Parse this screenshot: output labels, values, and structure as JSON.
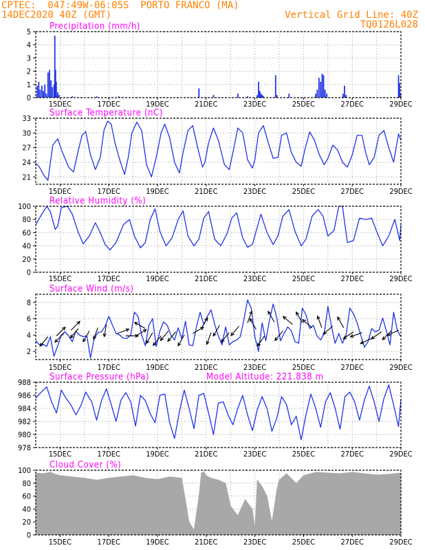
{
  "header": {
    "line1": "CPTEC:  047:49W-06:05S  PORTO FRANCO (MA)",
    "line2_left": "14DEC2020 40Z (GMT)",
    "line2_right": "Vertical Grid Line: 40Z",
    "line3_right": "TQ0126L028",
    "color": "#ff8000"
  },
  "colors": {
    "title": "#ff00ff",
    "line": "#1e32e6",
    "bar": "#1e32e6",
    "cloud": "#a8a8a8",
    "grid": "#9a9a9a",
    "axis": "#000000"
  },
  "x_axis_labels": [
    "15DEC",
    "17DEC",
    "19DEC",
    "21DEC",
    "23DEC",
    "25DEC",
    "27DEC",
    "29DEC"
  ],
  "chart_data": [
    {
      "type": "bar",
      "title": "Precipitation (mm/h)",
      "ylim": [
        0,
        5
      ],
      "yticks": [
        "0",
        "1",
        "2",
        "3",
        "4",
        "5"
      ],
      "x_range_days": [
        14.0,
        29.0
      ],
      "x": [
        14.06,
        14.12,
        14.18,
        14.25,
        14.31,
        14.37,
        14.43,
        14.5,
        14.56,
        14.62,
        14.68,
        14.75,
        14.78,
        14.81,
        14.84,
        14.9,
        14.95,
        15.5,
        16.5,
        17.4,
        20.7,
        21.3,
        22.3,
        22.7,
        23.1,
        23.15,
        23.2,
        23.25,
        23.3,
        23.35,
        23.85,
        23.9,
        24.4,
        25.5,
        25.56,
        25.63,
        25.7,
        25.76,
        25.82,
        25.88,
        25.95,
        26.62,
        26.68,
        26.74,
        28.9,
        28.94,
        28.98
      ],
      "values": [
        0.9,
        1.2,
        0.6,
        0.9,
        0.5,
        1.0,
        0.3,
        1.9,
        2.1,
        1.3,
        0.8,
        1.0,
        4.7,
        2.1,
        1.2,
        0.4,
        0.2,
        0.1,
        0.1,
        0.1,
        0.7,
        0.2,
        0.3,
        0.1,
        0.2,
        1.2,
        0.5,
        0.3,
        0.2,
        0.1,
        1.7,
        0.2,
        0.3,
        0.3,
        0.6,
        1.5,
        1.2,
        1.8,
        1.7,
        0.6,
        0.3,
        0.3,
        0.9,
        0.2,
        1.7,
        1.1,
        0.3
      ]
    },
    {
      "type": "line",
      "title": "Surface Temperature (nC)",
      "ylim": [
        19.5,
        33
      ],
      "yticks": [
        "21",
        "24",
        "27",
        "30",
        "33"
      ],
      "x_range_days": [
        14.0,
        29.0
      ],
      "x": [
        14.0,
        14.15,
        14.35,
        14.5,
        14.7,
        14.9,
        15.1,
        15.35,
        15.55,
        15.75,
        15.9,
        16.05,
        16.25,
        16.45,
        16.65,
        16.8,
        16.95,
        17.1,
        17.25,
        17.45,
        17.65,
        17.8,
        17.95,
        18.15,
        18.35,
        18.55,
        18.75,
        18.95,
        19.15,
        19.3,
        19.5,
        19.7,
        19.9,
        20.05,
        20.25,
        20.45,
        20.65,
        20.85,
        20.95,
        21.1,
        21.3,
        21.5,
        21.75,
        21.95,
        22.1,
        22.3,
        22.5,
        22.7,
        22.9,
        23.0,
        23.15,
        23.35,
        23.55,
        23.75,
        23.95,
        24.1,
        24.3,
        24.5,
        24.7,
        24.9,
        25.05,
        25.25,
        25.45,
        25.65,
        25.85,
        26.0,
        26.2,
        26.4,
        26.6,
        26.8,
        27.0,
        27.2,
        27.4,
        27.55,
        27.7,
        27.9,
        28.1,
        28.3,
        28.5,
        28.7,
        28.9,
        29.0
      ],
      "values": [
        23.8,
        23.0,
        21.2,
        20.3,
        27.5,
        28.8,
        26.0,
        23.0,
        22.0,
        26.5,
        29.5,
        30.3,
        25.5,
        22.5,
        25.0,
        30.5,
        32.4,
        31.8,
        28.0,
        24.5,
        21.5,
        25.0,
        30.0,
        32.2,
        30.5,
        23.5,
        21.0,
        25.0,
        30.0,
        31.8,
        29.0,
        24.0,
        21.8,
        26.0,
        30.5,
        31.5,
        27.0,
        23.0,
        24.0,
        28.0,
        31.0,
        28.5,
        23.5,
        22.5,
        26.0,
        31.0,
        30.0,
        24.5,
        22.8,
        24.5,
        30.0,
        31.5,
        28.0,
        24.8,
        25.0,
        29.5,
        30.0,
        26.0,
        24.0,
        23.2,
        26.5,
        30.2,
        28.5,
        25.5,
        23.5,
        24.8,
        27.5,
        26.5,
        24.0,
        23.0,
        25.5,
        29.5,
        29.5,
        26.0,
        23.5,
        25.0,
        29.5,
        30.5,
        27.0,
        24.0,
        29.8,
        28.5
      ]
    },
    {
      "type": "line",
      "title": "Relative Humidity (%)",
      "ylim": [
        0,
        100
      ],
      "yticks": [
        "0",
        "20",
        "40",
        "60",
        "80",
        "100"
      ],
      "x_range_days": [
        14.0,
        29.0
      ],
      "x": [
        14.0,
        14.2,
        14.45,
        14.6,
        14.8,
        14.9,
        15.05,
        15.3,
        15.5,
        15.75,
        15.95,
        16.2,
        16.45,
        16.65,
        16.85,
        17.05,
        17.3,
        17.6,
        17.85,
        18.05,
        18.3,
        18.5,
        18.7,
        18.9,
        19.1,
        19.35,
        19.6,
        19.85,
        20.05,
        20.25,
        20.5,
        20.7,
        20.9,
        21.1,
        21.35,
        21.6,
        21.85,
        22.05,
        22.25,
        22.5,
        22.7,
        22.9,
        23.05,
        23.25,
        23.5,
        23.75,
        23.95,
        24.15,
        24.4,
        24.65,
        24.9,
        25.1,
        25.35,
        25.6,
        25.8,
        26.0,
        26.25,
        26.45,
        26.6,
        26.8,
        27.05,
        27.3,
        27.55,
        27.8,
        28.0,
        28.25,
        28.5,
        28.75,
        28.95,
        29.0
      ],
      "values": [
        72.0,
        85.0,
        100.0,
        92.0,
        65.0,
        70.0,
        98.0,
        100.0,
        88.0,
        60.0,
        43.0,
        55.0,
        75.0,
        60.0,
        42.0,
        34.0,
        45.0,
        72.0,
        80.0,
        55.0,
        37.0,
        45.0,
        80.0,
        96.0,
        62.0,
        40.0,
        52.0,
        80.0,
        93.0,
        55.0,
        40.0,
        50.0,
        82.0,
        92.0,
        50.0,
        40.0,
        58.0,
        82.0,
        90.0,
        52.0,
        38.0,
        42.0,
        62.0,
        88.0,
        60.0,
        42.0,
        55.0,
        85.0,
        95.0,
        62.0,
        40.0,
        50.0,
        85.0,
        95.0,
        85.0,
        55.0,
        63.0,
        100.0,
        100.0,
        45.0,
        48.0,
        82.0,
        80.0,
        82.0,
        62.0,
        40.0,
        55.0,
        80.0,
        48.0,
        72.0
      ]
    },
    {
      "type": "line",
      "title": "Surface Wind (m/s)",
      "ylim": [
        1,
        9
      ],
      "yticks": [
        "2",
        "4",
        "6",
        "8"
      ],
      "x_range_days": [
        14.0,
        29.0
      ],
      "x": [
        14.0,
        14.15,
        14.3,
        14.45,
        14.6,
        14.75,
        14.9,
        15.05,
        15.2,
        15.35,
        15.5,
        15.65,
        15.8,
        15.95,
        16.1,
        16.25,
        16.4,
        16.55,
        16.7,
        16.85,
        17.0,
        17.15,
        17.3,
        17.45,
        17.6,
        17.75,
        17.9,
        18.05,
        18.2,
        18.35,
        18.5,
        18.65,
        18.8,
        18.95,
        19.1,
        19.25,
        19.4,
        19.55,
        19.7,
        19.85,
        20.0,
        20.15,
        20.3,
        20.45,
        20.6,
        20.75,
        20.9,
        21.05,
        21.2,
        21.35,
        21.5,
        21.65,
        21.8,
        21.95,
        22.1,
        22.25,
        22.4,
        22.55,
        22.7,
        22.85,
        23.0,
        23.15,
        23.3,
        23.45,
        23.6,
        23.75,
        23.9,
        24.05,
        24.2,
        24.35,
        24.5,
        24.65,
        24.8,
        24.95,
        25.1,
        25.25,
        25.4,
        25.55,
        25.7,
        25.85,
        26.0,
        26.15,
        26.3,
        26.45,
        26.6,
        26.75,
        26.9,
        27.05,
        27.2,
        27.35,
        27.5,
        27.65,
        27.8,
        27.95,
        28.1,
        28.25,
        28.4,
        28.55,
        28.7,
        28.85,
        29.0
      ],
      "values": [
        3.3,
        2.8,
        2.9,
        2.6,
        3.8,
        1.4,
        2.7,
        4.0,
        4.4,
        3.9,
        3.2,
        4.5,
        4.0,
        3.8,
        3.9,
        1.2,
        3.6,
        4.3,
        4.4,
        5.1,
        6.3,
        5.2,
        4.2,
        4.0,
        3.6,
        3.6,
        4.0,
        6.8,
        6.3,
        4.0,
        2.7,
        5.2,
        6.0,
        2.6,
        4.5,
        5.6,
        5.2,
        4.0,
        3.4,
        4.9,
        3.5,
        5.7,
        2.8,
        2.7,
        5.0,
        6.8,
        5.3,
        6.3,
        7.1,
        5.3,
        3.9,
        2.8,
        5.0,
        2.8,
        3.2,
        3.4,
        3.8,
        5.9,
        8.3,
        7.3,
        3.8,
        2.0,
        5.5,
        3.3,
        5.8,
        7.8,
        6.1,
        3.3,
        4.2,
        5.0,
        4.5,
        3.2,
        3.0,
        7.3,
        6.5,
        4.8,
        5.2,
        3.9,
        3.4,
        4.2,
        7.5,
        5.0,
        3.0,
        4.2,
        3.0,
        4.0,
        7.3,
        6.6,
        5.5,
        4.0,
        2.5,
        3.2,
        4.8,
        4.4,
        4.6,
        6.1,
        4.5,
        2.8,
        6.8,
        4.6,
        3.8
      ]
    },
    {
      "type": "line",
      "title": "Surface Pressure (hPa)",
      "subtitle": "Model Altitude: 221.838 m",
      "ylim": [
        978,
        988
      ],
      "yticks": [
        "978",
        "980",
        "982",
        "984",
        "986",
        "988"
      ],
      "x_range_days": [
        14.0,
        29.0
      ],
      "x": [
        14.0,
        14.2,
        14.45,
        14.65,
        14.85,
        15.05,
        15.25,
        15.45,
        15.65,
        15.85,
        16.05,
        16.3,
        16.5,
        16.7,
        16.9,
        17.1,
        17.3,
        17.5,
        17.7,
        17.9,
        18.1,
        18.3,
        18.5,
        18.7,
        18.9,
        19.1,
        19.3,
        19.5,
        19.7,
        19.9,
        20.1,
        20.3,
        20.5,
        20.7,
        20.9,
        21.1,
        21.3,
        21.5,
        21.7,
        21.9,
        22.1,
        22.3,
        22.5,
        22.7,
        22.9,
        23.1,
        23.3,
        23.5,
        23.7,
        23.9,
        24.1,
        24.3,
        24.5,
        24.7,
        24.9,
        25.1,
        25.3,
        25.5,
        25.7,
        25.9,
        26.1,
        26.3,
        26.5,
        26.7,
        26.9,
        27.1,
        27.3,
        27.5,
        27.7,
        27.9,
        28.1,
        28.3,
        28.5,
        28.7,
        28.9,
        29.0
      ],
      "values": [
        985.6,
        986.4,
        987.3,
        985.0,
        983.3,
        986.8,
        985.5,
        984.5,
        983.0,
        984.4,
        986.5,
        985.0,
        982.2,
        985.2,
        987.0,
        984.6,
        982.0,
        985.3,
        986.4,
        985.0,
        981.3,
        986.0,
        985.2,
        983.2,
        981.8,
        986.0,
        986.2,
        981.8,
        979.4,
        983.5,
        986.8,
        984.0,
        980.9,
        986.0,
        986.3,
        983.3,
        980.0,
        984.8,
        985.0,
        983.0,
        981.5,
        984.0,
        986.0,
        983.0,
        980.6,
        983.8,
        985.8,
        984.0,
        980.5,
        982.5,
        985.8,
        984.6,
        981.5,
        982.8,
        979.2,
        983.0,
        986.2,
        984.0,
        981.1,
        985.0,
        986.4,
        984.0,
        980.8,
        985.8,
        986.5,
        985.0,
        982.2,
        985.3,
        987.4,
        985.0,
        982.0,
        985.5,
        987.6,
        984.5,
        981.2,
        985.4
      ]
    },
    {
      "type": "area",
      "title": "Cloud Cover (%)",
      "ylim": [
        0,
        100
      ],
      "yticks": [
        "0",
        "20",
        "40",
        "60",
        "80",
        "100"
      ],
      "x_range_days": [
        14.0,
        29.0
      ],
      "x": [
        14.0,
        14.3,
        14.6,
        14.8,
        15.0,
        15.5,
        16.0,
        16.5,
        17.0,
        17.5,
        18.0,
        18.5,
        19.0,
        19.5,
        20.0,
        20.3,
        20.5,
        20.7,
        20.8,
        20.9,
        21.0,
        21.2,
        21.5,
        21.8,
        22.0,
        22.3,
        22.6,
        22.9,
        23.0,
        23.1,
        23.3,
        23.5,
        23.7,
        23.9,
        24.0,
        24.3,
        24.7,
        25.0,
        25.5,
        26.0,
        26.5,
        27.0,
        27.5,
        28.0,
        28.5,
        29.0
      ],
      "values": [
        96,
        95,
        97,
        94,
        92,
        90,
        88,
        85,
        88,
        90,
        92,
        88,
        86,
        90,
        88,
        20,
        8,
        60,
        96,
        98,
        92,
        88,
        85,
        80,
        45,
        30,
        55,
        40,
        10,
        85,
        75,
        60,
        20,
        70,
        85,
        95,
        80,
        92,
        97,
        96,
        95,
        97,
        95,
        93,
        94,
        96
      ]
    }
  ],
  "wind_arrows": {
    "x": [
      14.5,
      14.85,
      15.15,
      15.45,
      15.75,
      16.2,
      16.55,
      16.9,
      17.35,
      17.7,
      18.1,
      18.5,
      18.8,
      19.15,
      19.45,
      19.75,
      20.1,
      20.45,
      20.8,
      21.2,
      21.55,
      21.95,
      22.35,
      22.7,
      23.05,
      23.4,
      23.8,
      24.15,
      24.55,
      24.95,
      25.35,
      25.75,
      26.2,
      26.65,
      27.05,
      27.4,
      27.8,
      28.2,
      28.6,
      28.9
    ],
    "y": [
      3.8,
      3.9,
      4.2,
      4.6,
      4.8,
      4.5,
      4.9,
      5.3,
      4.2,
      3.9,
      3.9,
      4.8,
      4.3,
      3.9,
      4.5,
      4.4,
      4.0,
      4.2,
      4.8,
      4.3,
      5.2,
      4.3,
      5.1,
      5.5,
      4.7,
      3.9,
      5.6,
      4.5,
      5.3,
      5.5,
      4.9,
      4.9,
      5.1,
      4.9,
      4.4,
      4.3,
      3.6,
      4.4,
      4.5,
      4.6
    ],
    "direction_deg": [
      220,
      45,
      225,
      45,
      220,
      210,
      200,
      190,
      70,
      90,
      60,
      300,
      210,
      220,
      220,
      220,
      210,
      60,
      30,
      200,
      210,
      220,
      220,
      20,
      330,
      215,
      330,
      220,
      310,
      330,
      310,
      340,
      230,
      330,
      235,
      250,
      245,
      235,
      225,
      245
    ]
  }
}
